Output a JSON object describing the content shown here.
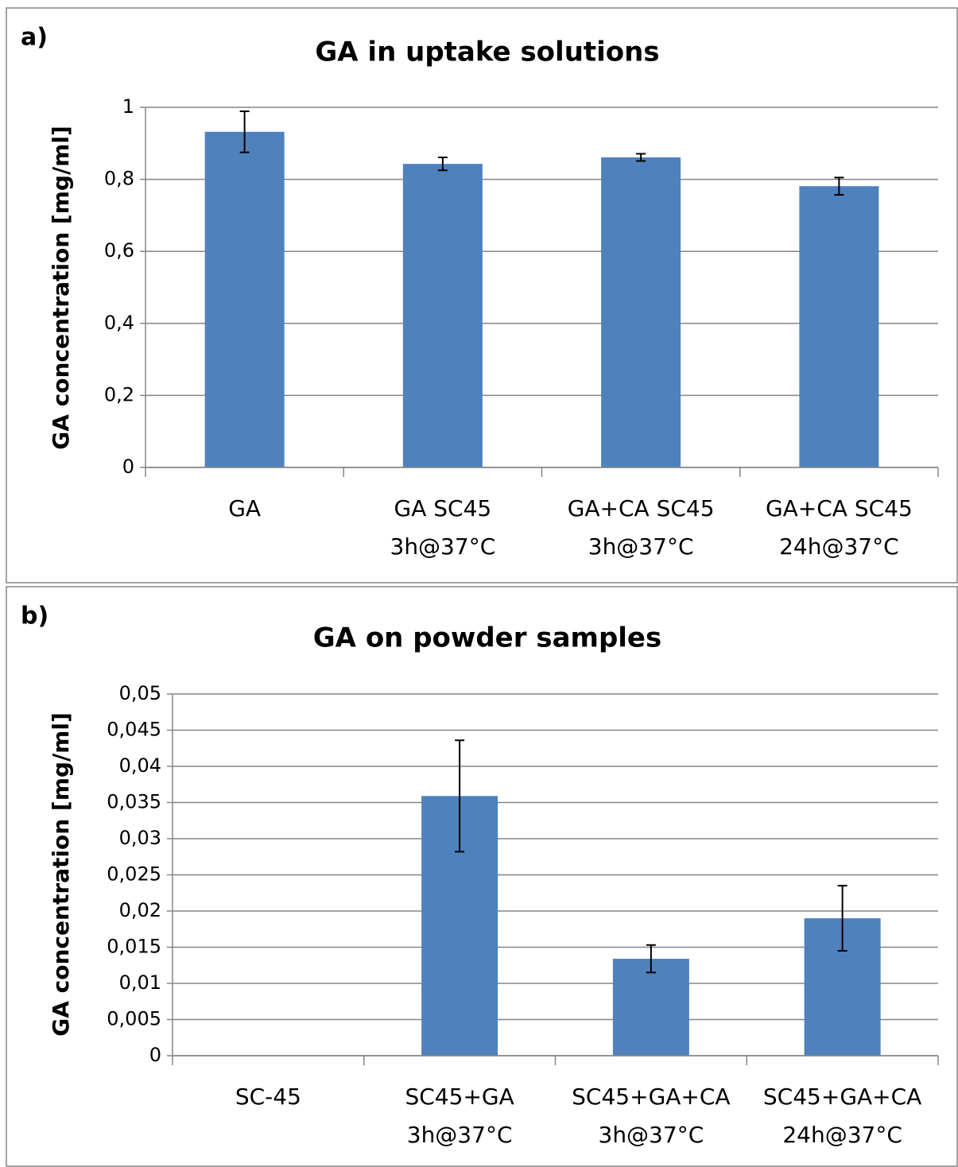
{
  "chart_data": [
    {
      "type": "bar",
      "panel_label": "a)",
      "title": "GA in uptake solutions",
      "y_label": "GA concentration [mg/ml]",
      "categories": [
        [
          "GA"
        ],
        [
          "GA SC45",
          "3h@37°C"
        ],
        [
          "GA+CA SC45",
          "3h@37°C"
        ],
        [
          "GA+CA SC45",
          "24h@37°C"
        ]
      ],
      "values": [
        0.932,
        0.843,
        0.861,
        0.781
      ],
      "errors": [
        0.057,
        0.018,
        0.01,
        0.024
      ],
      "color": "#4f81bd",
      "ylim": [
        0,
        1
      ],
      "yticks": [
        0,
        {
          "value": 0.2,
          "label": "0,2"
        },
        {
          "value": 0.4,
          "label": "0,4"
        },
        {
          "value": 0.6,
          "label": "0,6"
        },
        {
          "value": 0.8,
          "label": "0,8"
        },
        1
      ],
      "grid": true
    },
    {
      "type": "bar",
      "panel_label": "b)",
      "title": "GA on powder samples",
      "y_label": "GA concentration [mg/ml]",
      "categories": [
        [
          "SC-45"
        ],
        [
          "SC45+GA",
          "3h@37°C"
        ],
        [
          "SC45+GA+CA",
          "3h@37°C"
        ],
        [
          "SC45+GA+CA",
          "24h@37°C"
        ]
      ],
      "values": [
        0,
        0.0359,
        0.0134,
        0.019
      ],
      "errors": [
        0,
        0.0077,
        0.0019,
        0.0045
      ],
      "color": "#4f81bd",
      "ylim": [
        0,
        0.05
      ],
      "yticks": [
        0,
        {
          "value": 0.005,
          "label": "0,005"
        },
        {
          "value": 0.01,
          "label": "0,01"
        },
        {
          "value": 0.015,
          "label": "0,015"
        },
        {
          "value": 0.02,
          "label": "0,02"
        },
        {
          "value": 0.025,
          "label": "0,025"
        },
        {
          "value": 0.03,
          "label": "0,03"
        },
        {
          "value": 0.035,
          "label": "0,035"
        },
        {
          "value": 0.04,
          "label": "0,04"
        },
        {
          "value": 0.045,
          "label": "0,045"
        },
        {
          "value": 0.05,
          "label": "0,05"
        }
      ],
      "grid": true
    }
  ]
}
